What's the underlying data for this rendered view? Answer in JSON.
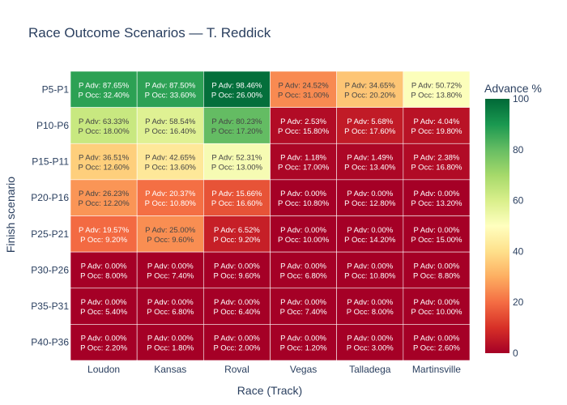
{
  "chart_data": {
    "type": "heatmap",
    "title": "Race Outcome Scenarios — T. Reddick",
    "xlabel": "Race (Track)",
    "ylabel": "Finish scenario",
    "x_categories": [
      "Loudon",
      "Kansas",
      "Roval",
      "Vegas",
      "Talladega",
      "Martinsville"
    ],
    "y_categories": [
      "P5-P1",
      "P10-P6",
      "P15-P11",
      "P20-P16",
      "P25-P21",
      "P30-P26",
      "P35-P31",
      "P40-P36"
    ],
    "advance_pct": [
      [
        87.65,
        87.5,
        98.46,
        24.52,
        34.65,
        50.72
      ],
      [
        63.33,
        58.54,
        80.23,
        2.53,
        5.68,
        4.04
      ],
      [
        36.51,
        42.65,
        52.31,
        1.18,
        1.49,
        2.38
      ],
      [
        26.23,
        20.37,
        15.66,
        0.0,
        0.0,
        0.0
      ],
      [
        19.57,
        25.0,
        6.52,
        0.0,
        0.0,
        0.0
      ],
      [
        0.0,
        0.0,
        0.0,
        0.0,
        0.0,
        0.0
      ],
      [
        0.0,
        0.0,
        0.0,
        0.0,
        0.0,
        0.0
      ],
      [
        0.0,
        0.0,
        0.0,
        0.0,
        0.0,
        0.0
      ]
    ],
    "occurrence_pct": [
      [
        32.4,
        33.6,
        26.0,
        31.0,
        20.2,
        13.8
      ],
      [
        18.0,
        16.4,
        17.2,
        15.8,
        17.6,
        19.8
      ],
      [
        12.6,
        13.6,
        13.0,
        17.0,
        13.4,
        16.8
      ],
      [
        12.2,
        10.8,
        16.6,
        10.8,
        12.8,
        13.2
      ],
      [
        9.2,
        9.6,
        9.2,
        10.0,
        14.2,
        15.0
      ],
      [
        8.0,
        7.4,
        9.6,
        6.8,
        10.8,
        8.8
      ],
      [
        5.4,
        6.8,
        6.4,
        7.4,
        8.0,
        10.0
      ],
      [
        2.2,
        1.8,
        2.0,
        1.2,
        3.0,
        2.6
      ]
    ],
    "cell_label_prefixes": {
      "advance": "P Adv: ",
      "occurrence": "P Occ: "
    },
    "colorbar": {
      "title": "Advance %",
      "range": [
        0,
        100
      ],
      "ticks": [
        "0",
        "20",
        "40",
        "60",
        "80",
        "100"
      ],
      "colorscale": "RdYlGn"
    }
  }
}
